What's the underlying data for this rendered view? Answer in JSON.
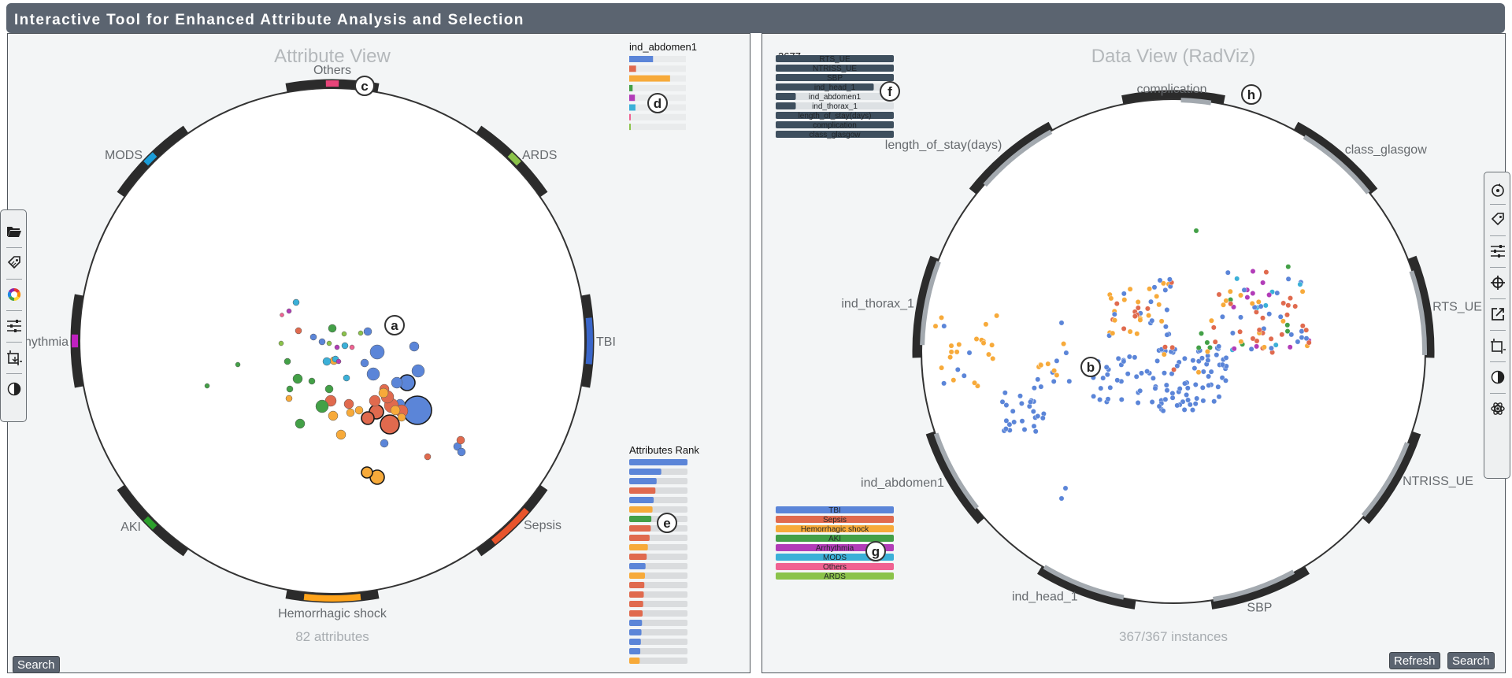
{
  "app": {
    "title": "Interactive Tool for Enhanced Attribute Analysis and Selection"
  },
  "left_view": {
    "title": "Attribute View",
    "count_label": "82 attributes",
    "axes": [
      "Others",
      "ARDS",
      "TBI",
      "Sepsis",
      "Hemorrhagic shock",
      "AKI",
      "Arrhythmia",
      "MODS"
    ],
    "axis_colors": [
      "#e8457a",
      "#8bc34a",
      "#3a66c9",
      "#e8542c",
      "#ffa31a",
      "#2ca02c",
      "#c020c0",
      "#1a9cd8"
    ],
    "attr_card": {
      "title": "ind_abdomen1",
      "fills": [
        0.42,
        0.12,
        0.72,
        0.06,
        0.1,
        0.11,
        0.02,
        0.02
      ],
      "colors": [
        "#5b85d8",
        "#e06a4e",
        "#f7aa3a",
        "#43a047",
        "#b23cb8",
        "#3bb0d8",
        "#f06292",
        "#8bc34a"
      ]
    },
    "rank": {
      "title": "Attributes Rank",
      "fills": [
        1.0,
        0.55,
        0.47,
        0.45,
        0.42,
        0.4,
        0.38,
        0.37,
        0.35,
        0.32,
        0.3,
        0.28,
        0.27,
        0.26,
        0.25,
        0.24,
        0.23,
        0.22,
        0.21,
        0.2,
        0.19,
        0.18
      ],
      "colors": [
        "#5b85d8",
        "#5b85d8",
        "#5b85d8",
        "#e06a4e",
        "#5b85d8",
        "#f7aa3a",
        "#43a047",
        "#e06a4e",
        "#e06a4e",
        "#f7aa3a",
        "#e06a4e",
        "#5b85d8",
        "#f7aa3a",
        "#e06a4e",
        "#e06a4e",
        "#e06a4e",
        "#e06a4e",
        "#5b85d8",
        "#5b85d8",
        "#5b85d8",
        "#5b85d8",
        "#f7aa3a"
      ]
    },
    "search_label": "Search"
  },
  "right_view": {
    "title": "Data View (RadViz)",
    "count_label": "367/367 instances",
    "axes": [
      "complication",
      "class_glasgow",
      "RTS_UE",
      "NTRISS_UE",
      "SBP",
      "ind_head_1",
      "ind_abdomen1",
      "ind_thorax_1",
      "length_of_stay(days)"
    ],
    "total_count": "2677",
    "attr_bars": [
      {
        "label": "RTS_UE",
        "fill": 1.0
      },
      {
        "label": "NTRISS_UE",
        "fill": 1.0
      },
      {
        "label": "SBP",
        "fill": 1.0
      },
      {
        "label": "ind_head_1",
        "fill": 0.83
      },
      {
        "label": "ind_abdomen1",
        "fill": 0.17
      },
      {
        "label": "ind_thorax_1",
        "fill": 0.17
      },
      {
        "label": "length_of_stay(days)",
        "fill": 1.0
      },
      {
        "label": "complication",
        "fill": 1.0
      },
      {
        "label": "class_glasgow",
        "fill": 1.0
      }
    ],
    "legend": [
      {
        "label": "TBI",
        "color": "#5b85d8"
      },
      {
        "label": "Sepsis",
        "color": "#e06a4e"
      },
      {
        "label": "Hemorrhagic shock",
        "color": "#f7aa3a"
      },
      {
        "label": "AKI",
        "color": "#43a047"
      },
      {
        "label": "Arrhythmia",
        "color": "#b23cb8"
      },
      {
        "label": "MODS",
        "color": "#3bb0d8"
      },
      {
        "label": "Others",
        "color": "#f06292"
      },
      {
        "label": "ARDS",
        "color": "#8bc34a"
      }
    ],
    "refresh_label": "Refresh",
    "search_label": "Search"
  },
  "annotations": [
    "a",
    "b",
    "c",
    "d",
    "e",
    "f",
    "g",
    "h"
  ],
  "toolbar_left": [
    "folder-open-icon",
    "tag-icon",
    "color-wheel-icon",
    "sliders-icon",
    "resize-icon",
    "contrast-icon"
  ],
  "toolbar_right": [
    "rotate-icon",
    "tag-icon",
    "sliders-icon",
    "target-icon",
    "export-icon",
    "resize-icon",
    "contrast-icon",
    "atom-icon"
  ]
}
